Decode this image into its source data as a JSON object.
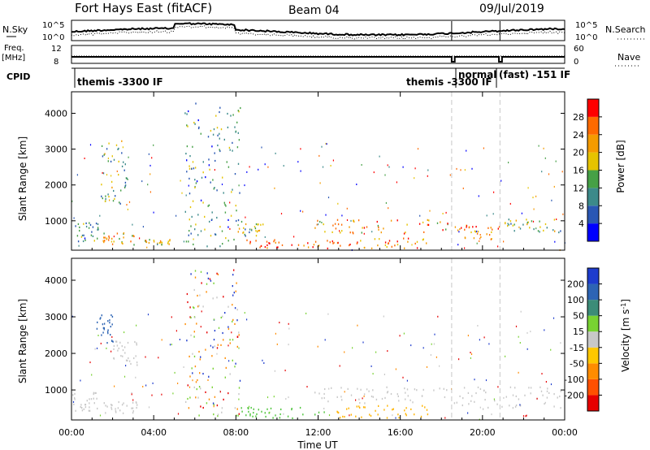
{
  "header": {
    "station": "Fort Hays East (fitACF)",
    "beam": "Beam 04",
    "date": "09/Jul/2019"
  },
  "top_panels": {
    "nsky_label": "N.Sky",
    "nsky_ticks": [
      "10^5",
      "10^0"
    ],
    "nsearch_label": "N.Search",
    "nsearch_ticks": [
      "10^5",
      "10^0"
    ],
    "freq_label": "Freq.",
    "freq_unit": "[MHz]",
    "freq_ticks": [
      "12",
      "8"
    ],
    "nave_label": "Nave",
    "nave_ticks": [
      "60",
      "0"
    ],
    "cpid_label": "CPID",
    "cpid_segments": [
      {
        "label": "themis -3300 IF"
      },
      {
        "label": "themis -3300 IF"
      },
      {
        "label": "normal"
      },
      {
        "label": "(fast) -151 IF"
      }
    ]
  },
  "chart_data": [
    {
      "type": "heatmap",
      "panel": "power",
      "ylabel": "Slant Range [km]",
      "y_ticks": [
        "1000",
        "2000",
        "3000",
        "4000"
      ],
      "ylim": [
        180,
        4600
      ],
      "colorbar_label": "Power [dB]",
      "colorbar_ticks": [
        "4",
        "8",
        "12",
        "16",
        "20",
        "24",
        "28"
      ],
      "colorbar_colors": [
        "#0000ff",
        "#2a57b4",
        "#3c8a8a",
        "#46a046",
        "#e6c300",
        "#f59b00",
        "#ff6a00",
        "#ff0000"
      ],
      "vlines_hours": [
        18.5,
        20.85
      ],
      "regions": [
        {
          "x": [
            0.0,
            1.3
          ],
          "y": [
            400,
            1000
          ],
          "level": 0.35
        },
        {
          "x": [
            1.5,
            3.2
          ],
          "y": [
            350,
            700
          ],
          "level": 0.65
        },
        {
          "x": [
            1.4,
            2.7
          ],
          "y": [
            1500,
            3300
          ],
          "level": 0.4
        },
        {
          "x": [
            3.5,
            4.8
          ],
          "y": [
            350,
            500
          ],
          "level": 0.6
        },
        {
          "x": [
            5.5,
            8.2
          ],
          "y": [
            300,
            4300
          ],
          "level": 0.35
        },
        {
          "x": [
            8.0,
            9.3
          ],
          "y": [
            600,
            1000
          ],
          "level": 0.45
        },
        {
          "x": [
            8.5,
            12.5
          ],
          "y": [
            250,
            500
          ],
          "level": 0.9
        },
        {
          "x": [
            11.8,
            18.5
          ],
          "y": [
            650,
            1050
          ],
          "level": 0.7
        },
        {
          "x": [
            12.5,
            17.5
          ],
          "y": [
            250,
            550
          ],
          "level": 0.75
        },
        {
          "x": [
            18.6,
            20.8
          ],
          "y": [
            500,
            900
          ],
          "level": 0.75
        },
        {
          "x": [
            21.0,
            23.8
          ],
          "y": [
            700,
            1100
          ],
          "level": 0.45
        }
      ]
    },
    {
      "type": "heatmap",
      "panel": "velocity",
      "ylabel": "Slant Range [km]",
      "y_ticks": [
        "1000",
        "2000",
        "3000",
        "4000"
      ],
      "ylim": [
        180,
        4600
      ],
      "xlabel": "Time UT",
      "x_ticks": [
        "00:00",
        "04:00",
        "08:00",
        "12:00",
        "16:00",
        "20:00",
        "00:00"
      ],
      "xlim": [
        0,
        24
      ],
      "colorbar_label": "Velocity [m s^-1]",
      "colorbar_ticks": [
        "200",
        "100",
        "50",
        "15",
        "-15",
        "-50",
        "-100",
        "-200"
      ],
      "colorbar_colors": [
        "#1e3ccd",
        "#2d64b4",
        "#3c8c78",
        "#78d232",
        "#c8c8c8",
        "#ffc800",
        "#ff8c00",
        "#ff5000",
        "#e60000"
      ],
      "vlines_hours": [
        18.5,
        20.85
      ],
      "regions": [
        {
          "x": [
            0.0,
            1.3
          ],
          "y": [
            400,
            1000
          ],
          "vel": "gray"
        },
        {
          "x": [
            1.5,
            3.2
          ],
          "y": [
            350,
            700
          ],
          "vel": "gray"
        },
        {
          "x": [
            1.2,
            2.0
          ],
          "y": [
            2300,
            3100
          ],
          "vel": "blue"
        },
        {
          "x": [
            2.0,
            3.2
          ],
          "y": [
            1700,
            2400
          ],
          "vel": "gray"
        },
        {
          "x": [
            5.5,
            8.2
          ],
          "y": [
            300,
            4300
          ],
          "vel": "mixed"
        },
        {
          "x": [
            8.0,
            12.5
          ],
          "y": [
            250,
            550
          ],
          "vel": "green"
        },
        {
          "x": [
            11.8,
            18.5
          ],
          "y": [
            650,
            1100
          ],
          "vel": "gray"
        },
        {
          "x": [
            12.5,
            17.5
          ],
          "y": [
            250,
            600
          ],
          "vel": "orange"
        },
        {
          "x": [
            18.6,
            23.8
          ],
          "y": [
            500,
            1100
          ],
          "vel": "gray"
        }
      ]
    }
  ]
}
